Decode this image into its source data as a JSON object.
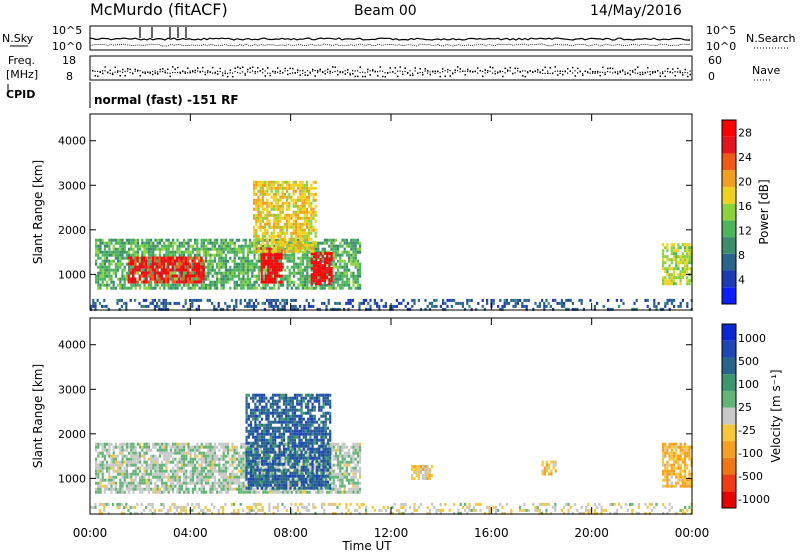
{
  "header": {
    "station": "McMurdo (fitACF)",
    "beam": "Beam 00",
    "date": "14/May/2016"
  },
  "top_panels": {
    "nsky_label": "N.Sky",
    "nsky_ticks": [
      "10^5",
      "10^0"
    ],
    "nsearch_label": "N.Search",
    "nsearch_ticks": [
      "10^5",
      "10^0"
    ],
    "freq_label_1": "Freq.",
    "freq_label_2": "[MHz]",
    "freq_ticks": [
      "18",
      "8"
    ],
    "nave_label": "Nave",
    "nave_ticks": [
      "60",
      "0"
    ],
    "cpid_label": "CPID",
    "cpid_text": "normal (fast) -151 RF"
  },
  "colors": {
    "power_scale": [
      "#0a1eff",
      "#1e3ab4",
      "#28648c",
      "#3c8c6e",
      "#4cb45a",
      "#8cd23c",
      "#f0d21e",
      "#f0a01e",
      "#f05a14",
      "#e6141e",
      "#ff0000"
    ],
    "velocity_scale": [
      "#e60000",
      "#f03c14",
      "#f07814",
      "#f5a01e",
      "#f5c83c",
      "#c8c8c8",
      "#64b478",
      "#3c966e",
      "#28648c",
      "#1e46b4",
      "#0a28d2"
    ]
  },
  "chart_data": [
    {
      "type": "heatmap",
      "title": "Power",
      "xlabel": "Time UT",
      "ylabel": "Slant Range [km]",
      "x_ticks": [
        "00:00",
        "04:00",
        "08:00",
        "12:00",
        "16:00",
        "20:00",
        "00:00"
      ],
      "y_ticks": [
        "1000",
        "2000",
        "3000",
        "4000"
      ],
      "ylim": [
        200,
        4600
      ],
      "colorbar": {
        "label": "Power [dB]",
        "ticks": [
          "4",
          "8",
          "12",
          "16",
          "20",
          "24",
          "28"
        ],
        "range": [
          0,
          30
        ]
      },
      "regions": [
        {
          "t": [
            0.2,
            10.8
          ],
          "r": [
            700,
            1800
          ],
          "v": 12
        },
        {
          "t": [
            1.5,
            4.5
          ],
          "r": [
            800,
            1400
          ],
          "v": 26
        },
        {
          "t": [
            6.8,
            7.6
          ],
          "r": [
            800,
            1600
          ],
          "v": 28
        },
        {
          "t": [
            8.8,
            9.6
          ],
          "r": [
            800,
            1500
          ],
          "v": 28
        },
        {
          "t": [
            6.5,
            9.0
          ],
          "r": [
            1500,
            3100
          ],
          "v": 18
        },
        {
          "t": [
            22.8,
            24.0
          ],
          "r": [
            800,
            1700
          ],
          "v": 16
        },
        {
          "t": [
            0.0,
            24.0
          ],
          "r": [
            200,
            450
          ],
          "v": 6
        }
      ]
    },
    {
      "type": "heatmap",
      "title": "Velocity",
      "xlabel": "Time UT",
      "ylabel": "Slant Range [km]",
      "x_ticks": [
        "00:00",
        "04:00",
        "08:00",
        "12:00",
        "16:00",
        "20:00",
        "00:00"
      ],
      "y_ticks": [
        "1000",
        "2000",
        "3000",
        "4000"
      ],
      "ylim": [
        200,
        4600
      ],
      "colorbar": {
        "label": "Velocity [m s⁻¹]",
        "ticks": [
          "1000",
          "500",
          "100",
          "25",
          "-25",
          "-100",
          "-500",
          "-1000"
        ],
        "range": [
          -1200,
          1200
        ]
      },
      "regions": [
        {
          "t": [
            0.2,
            10.8
          ],
          "r": [
            700,
            1800
          ],
          "v": 80
        },
        {
          "t": [
            6.2,
            9.6
          ],
          "r": [
            800,
            2900
          ],
          "v": 700
        },
        {
          "t": [
            18.0,
            18.6
          ],
          "r": [
            1100,
            1400
          ],
          "v": -200
        },
        {
          "t": [
            12.8,
            13.6
          ],
          "r": [
            1000,
            1300
          ],
          "v": -200
        },
        {
          "t": [
            22.8,
            24.0
          ],
          "r": [
            800,
            1800
          ],
          "v": -300
        },
        {
          "t": [
            0.0,
            24.0
          ],
          "r": [
            200,
            450
          ],
          "v": -50
        }
      ]
    }
  ]
}
